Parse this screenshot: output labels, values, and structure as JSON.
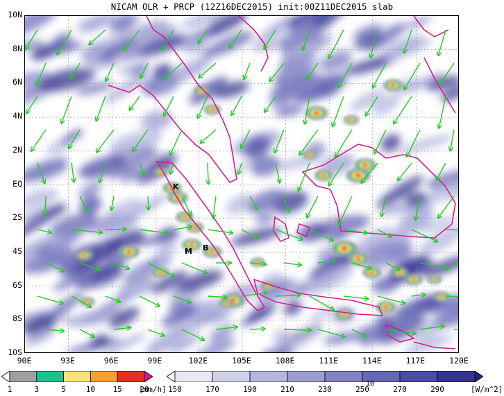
{
  "title": "NICAM OLR + PRCP (12Z16DEC2015) init:00Z11DEC2015 slab",
  "y_axis_labels": [
    "10N",
    "8N",
    "6N",
    "4N",
    "2N",
    "EQ",
    "2S",
    "4S",
    "6S",
    "8S",
    "10S"
  ],
  "x_axis_labels": [
    "90E",
    "93E",
    "96E",
    "99E",
    "102E",
    "105E",
    "108E",
    "111E",
    "114E",
    "117E",
    "120E"
  ],
  "station_labels": [
    "K",
    "M",
    "B"
  ],
  "precip_colorbar": {
    "ticks": [
      "1",
      "3",
      "5",
      "10",
      "15",
      "20"
    ],
    "unit": "[mm/h]",
    "colors": [
      "#ffffff",
      "#a0a0a0",
      "#1fbf8f",
      "#f5e27a",
      "#f5a030",
      "#e83020",
      "#d01890"
    ]
  },
  "olr_colorbar": {
    "ticks": [
      "150",
      "170",
      "190",
      "210",
      "230",
      "250",
      "270",
      "290"
    ],
    "unit": "[W/m^2]",
    "colors": [
      "#ffffff",
      "#e8e8f4",
      "#cfd0ea",
      "#b4b6de",
      "#9a9cd2",
      "#8082c4",
      "#6566b5",
      "#4b4ca4",
      "#353590",
      "#222277"
    ]
  },
  "vector_reference_label": "10",
  "colors": {
    "vector": "#22cc22",
    "coastline": "#d0208a",
    "frame": "#000000"
  }
}
